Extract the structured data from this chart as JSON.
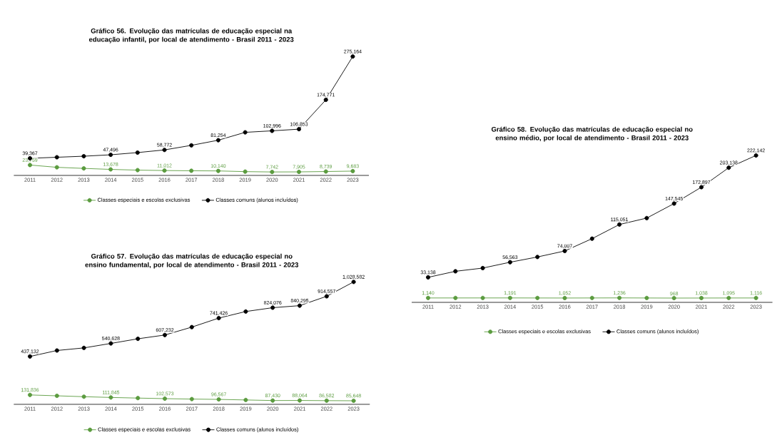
{
  "chart_data": [
    {
      "type": "line",
      "title": "Gráfico 56. Evolução das matrículas de educação especial na educação infantil, por local de atendimento - Brasil 2011 - 2023",
      "categories": [
        "2011",
        "2012",
        "2013",
        "2014",
        "2015",
        "2016",
        "2017",
        "2018",
        "2019",
        "2020",
        "2021",
        "2022",
        "2023"
      ],
      "marker": "circle",
      "legend": "bottom",
      "tick_labels": "x",
      "series": [
        {
          "name": "Classes especiais e escolas exclusivas",
          "color": "#5b9b3f",
          "values": [
            23759,
            18500,
            16000,
            13678,
            12000,
            11012,
            10500,
            10140,
            8500,
            7742,
            7905,
            8739,
            9683
          ],
          "value_labels": [
            "23,759",
            null,
            null,
            "13,678",
            null,
            "11,012",
            null,
            "10,140",
            null,
            "7,742",
            "7,905",
            "8,739",
            "9,683"
          ]
        },
        {
          "name": "Classes comuns (alunos incluídos)",
          "color": "#000000",
          "values": [
            39367,
            41800,
            44200,
            47496,
            52600,
            58772,
            69400,
            81254,
            99500,
            102996,
            106853,
            174771,
            275164
          ],
          "value_labels": [
            "39,367",
            null,
            null,
            "47,496",
            null,
            "58,772",
            null,
            "81,254",
            null,
            "102,996",
            "106,853",
            "174,771",
            "275,164"
          ]
        }
      ]
    },
    {
      "type": "line",
      "title": "Gráfico 57. Evolução das matrículas de educação especial no ensino fundamental, por local de atendimento  - Brasil 2011 - 2023",
      "categories": [
        "2011",
        "2012",
        "2013",
        "2014",
        "2015",
        "2016",
        "2017",
        "2018",
        "2019",
        "2020",
        "2021",
        "2022",
        "2023"
      ],
      "marker": "circle",
      "legend": "bottom",
      "tick_labels": "x",
      "series": [
        {
          "name": "Classes especiais e escolas exclusivas",
          "color": "#5b9b3f",
          "values": [
            131836,
            125000,
            118000,
            111845,
            107000,
            102573,
            99000,
            96567,
            92000,
            87430,
            88064,
            86582,
            85648
          ],
          "value_labels": [
            "131,836",
            null,
            null,
            "111,845",
            null,
            "102,573",
            null,
            "96,567",
            null,
            "87,430",
            "88,064",
            "86,582",
            "85,648"
          ]
        },
        {
          "name": "Classes comuns (alunos incluídos)",
          "color": "#000000",
          "values": [
            437132,
            484500,
            505100,
            540628,
            577300,
            607232,
            670000,
            741426,
            793700,
            824076,
            840295,
            914557,
            1028582
          ],
          "value_labels": [
            "437,132",
            null,
            null,
            "540,628",
            null,
            "607,232",
            null,
            "741,426",
            null,
            "824,076",
            "840,295",
            "914,557",
            "1,028,582"
          ]
        }
      ]
    },
    {
      "type": "line",
      "title": "Gráfico 58. Evolução das matrículas de educação especial no ensino médio, por local de atendimento  - Brasil 2011 - 2023",
      "categories": [
        "2011",
        "2012",
        "2013",
        "2014",
        "2015",
        "2016",
        "2017",
        "2018",
        "2019",
        "2020",
        "2021",
        "2022",
        "2023"
      ],
      "marker": "circle",
      "legend": "bottom",
      "tick_labels": "x",
      "series": [
        {
          "name": "Classes especiais e escolas exclusivas",
          "color": "#5b9b3f",
          "values": [
            1140,
            1150,
            1170,
            1191,
            1120,
            1052,
            1140,
            1236,
            1100,
            968,
            1038,
            1095,
            1116
          ],
          "value_labels": [
            "1,140",
            null,
            null,
            "1,191",
            null,
            "1,052",
            null,
            "1,236",
            null,
            "968",
            "1,038",
            "1,095",
            "1,116"
          ]
        },
        {
          "name": "Classes comuns (alunos incluídos)",
          "color": "#000000",
          "values": [
            33138,
            42500,
            47500,
            56563,
            64700,
            74007,
            93100,
            115051,
            125000,
            147545,
            172897,
            203138,
            222142
          ],
          "value_labels": [
            "33,138",
            null,
            null,
            "56,563",
            null,
            "74,007",
            null,
            "115,051",
            null,
            "147,545",
            "172,897",
            "203,138",
            "222,142"
          ]
        }
      ]
    }
  ]
}
